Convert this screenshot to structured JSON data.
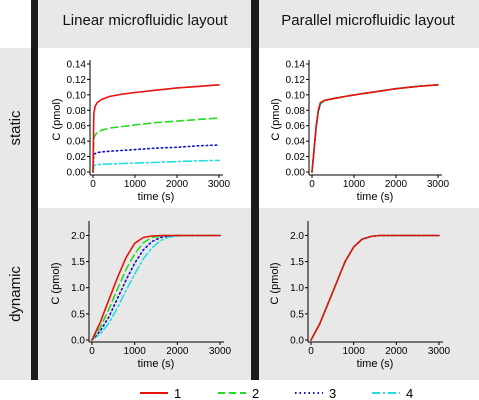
{
  "figure": {
    "columns": [
      "Linear microfluidic layout",
      "Parallel microfluidic layout"
    ],
    "rows": [
      "static",
      "dynamic"
    ],
    "colors": {
      "separator": "#1a1a1a",
      "header_bg": "#e8e8e8",
      "row_bg": "#e8e8e8",
      "plot_bg": "#ffffff"
    }
  },
  "legend": {
    "items": [
      {
        "label": "1",
        "color": "#e8120c",
        "dash": "solid"
      },
      {
        "label": "2",
        "color": "#22dd22",
        "dash": "dash"
      },
      {
        "label": "3",
        "color": "#1010cc",
        "dash": "dot"
      },
      {
        "label": "4",
        "color": "#22e0e0",
        "dash": "dashdot"
      }
    ]
  },
  "chart_data": [
    {
      "id": "linear-static",
      "type": "line",
      "title": "",
      "xlabel": "time (s)",
      "ylabel": "C (pmol)",
      "xlim": [
        0,
        3000
      ],
      "ylim": [
        0,
        0.14
      ],
      "xticks": [
        0,
        1000,
        2000,
        3000
      ],
      "yticks": [
        0.0,
        0.02,
        0.04,
        0.06,
        0.08,
        0.1,
        0.12,
        0.14
      ],
      "xtick_labels": [
        "0",
        "1000",
        "2000",
        "3000"
      ],
      "ytick_labels": [
        "0.00",
        "0.02",
        "0.04",
        "0.06",
        "0.08",
        "0.10",
        "0.12",
        "0.14"
      ],
      "grid": false,
      "series": [
        {
          "name": "1",
          "x": [
            0,
            20,
            50,
            100,
            200,
            400,
            700,
            1000,
            1500,
            2000,
            2500,
            3000
          ],
          "y": [
            0,
            0.075,
            0.085,
            0.09,
            0.094,
            0.098,
            0.101,
            0.103,
            0.106,
            0.109,
            0.111,
            0.113
          ]
        },
        {
          "name": "2",
          "x": [
            0,
            20,
            50,
            100,
            200,
            400,
            700,
            1000,
            1500,
            2000,
            2500,
            3000
          ],
          "y": [
            0,
            0.043,
            0.048,
            0.051,
            0.054,
            0.057,
            0.059,
            0.061,
            0.064,
            0.066,
            0.068,
            0.07
          ]
        },
        {
          "name": "3",
          "x": [
            0,
            20,
            50,
            100,
            200,
            400,
            700,
            1000,
            1500,
            2000,
            2500,
            3000
          ],
          "y": [
            0,
            0.022,
            0.024,
            0.025,
            0.026,
            0.027,
            0.028,
            0.029,
            0.031,
            0.032,
            0.034,
            0.035
          ]
        },
        {
          "name": "4",
          "x": [
            0,
            20,
            50,
            100,
            200,
            400,
            700,
            1000,
            1500,
            2000,
            2500,
            3000
          ],
          "y": [
            0,
            0.008,
            0.009,
            0.0095,
            0.01,
            0.0105,
            0.011,
            0.0115,
            0.0125,
            0.0135,
            0.0145,
            0.015
          ]
        }
      ]
    },
    {
      "id": "parallel-static",
      "type": "line",
      "title": "",
      "xlabel": "time (s)",
      "ylabel": "C (pmol)",
      "xlim": [
        0,
        3000
      ],
      "ylim": [
        0,
        0.14
      ],
      "xticks": [
        0,
        1000,
        2000,
        3000
      ],
      "yticks": [
        0.0,
        0.02,
        0.04,
        0.06,
        0.08,
        0.1,
        0.12,
        0.14
      ],
      "xtick_labels": [
        "0",
        "1000",
        "2000",
        "3000"
      ],
      "ytick_labels": [
        "0.00",
        "0.02",
        "0.04",
        "0.06",
        "0.08",
        "0.10",
        "0.12",
        "0.14"
      ],
      "grid": false,
      "series": [
        {
          "name": "1",
          "x": [
            0,
            50,
            100,
            150,
            200,
            300,
            500,
            800,
            1000,
            1500,
            2000,
            2500,
            3000
          ],
          "y": [
            0,
            0.03,
            0.06,
            0.08,
            0.09,
            0.093,
            0.095,
            0.098,
            0.1,
            0.104,
            0.108,
            0.111,
            0.113
          ]
        },
        {
          "name": "2",
          "x": [
            0,
            50,
            100,
            150,
            200,
            300,
            500,
            800,
            1000,
            1500,
            2000,
            2500,
            3000
          ],
          "y": [
            0,
            0.029,
            0.059,
            0.079,
            0.089,
            0.093,
            0.095,
            0.098,
            0.1,
            0.104,
            0.108,
            0.111,
            0.113
          ]
        },
        {
          "name": "3",
          "x": [
            0,
            50,
            100,
            150,
            200,
            300,
            500,
            800,
            1000,
            1500,
            2000,
            2500,
            3000
          ],
          "y": [
            0,
            0.028,
            0.058,
            0.078,
            0.089,
            0.093,
            0.095,
            0.098,
            0.1,
            0.104,
            0.108,
            0.111,
            0.113
          ]
        },
        {
          "name": "4",
          "x": [
            0,
            50,
            100,
            150,
            200,
            300,
            500,
            800,
            1000,
            1500,
            2000,
            2500,
            3000
          ],
          "y": [
            0,
            0.027,
            0.057,
            0.077,
            0.088,
            0.092,
            0.095,
            0.098,
            0.1,
            0.104,
            0.108,
            0.111,
            0.113
          ]
        }
      ]
    },
    {
      "id": "linear-dynamic",
      "type": "line",
      "title": "",
      "xlabel": "time (s)",
      "ylabel": "C (pmol)",
      "xlim": [
        0,
        3000
      ],
      "ylim": [
        0,
        2.2
      ],
      "xticks": [
        0,
        1000,
        2000,
        3000
      ],
      "yticks": [
        0.0,
        0.5,
        1.0,
        1.5,
        2.0
      ],
      "xtick_labels": [
        "0",
        "1000",
        "2000",
        "3000"
      ],
      "ytick_labels": [
        "0.0",
        "0.5",
        "1.0",
        "1.5",
        "2.0"
      ],
      "grid": false,
      "series": [
        {
          "name": "1",
          "x": [
            0,
            200,
            400,
            600,
            800,
            1000,
            1200,
            1400,
            1600,
            2000,
            2500,
            3000
          ],
          "y": [
            0,
            0.35,
            0.78,
            1.2,
            1.58,
            1.85,
            1.96,
            1.99,
            2.0,
            2.0,
            2.0,
            2.0
          ]
        },
        {
          "name": "2",
          "x": [
            0,
            200,
            400,
            600,
            800,
            1000,
            1200,
            1400,
            1600,
            1800,
            2000,
            2500,
            3000
          ],
          "y": [
            0,
            0.25,
            0.6,
            0.98,
            1.35,
            1.65,
            1.86,
            1.96,
            1.99,
            2.0,
            2.0,
            2.0,
            2.0
          ]
        },
        {
          "name": "3",
          "x": [
            0,
            200,
            400,
            600,
            800,
            1000,
            1200,
            1400,
            1600,
            1800,
            2000,
            2500,
            3000
          ],
          "y": [
            0,
            0.18,
            0.45,
            0.8,
            1.15,
            1.47,
            1.72,
            1.88,
            1.96,
            1.99,
            2.0,
            2.0,
            2.0
          ]
        },
        {
          "name": "4",
          "x": [
            0,
            200,
            400,
            600,
            800,
            1000,
            1200,
            1400,
            1600,
            1800,
            2000,
            2200,
            2500,
            3000
          ],
          "y": [
            0,
            0.12,
            0.33,
            0.62,
            0.95,
            1.26,
            1.55,
            1.76,
            1.9,
            1.97,
            1.99,
            2.0,
            2.0,
            2.0
          ]
        }
      ]
    },
    {
      "id": "parallel-dynamic",
      "type": "line",
      "title": "",
      "xlabel": "time (s)",
      "ylabel": "C (pmol)",
      "xlim": [
        0,
        3000
      ],
      "ylim": [
        0,
        2.2
      ],
      "xticks": [
        0,
        1000,
        2000,
        3000
      ],
      "yticks": [
        0.0,
        0.5,
        1.0,
        1.5,
        2.0
      ],
      "xtick_labels": [
        "0",
        "1000",
        "2000",
        "3000"
      ],
      "ytick_labels": [
        "0.0",
        "0.5",
        "1.0",
        "1.5",
        "2.0"
      ],
      "grid": false,
      "series": [
        {
          "name": "1",
          "x": [
            0,
            200,
            400,
            600,
            800,
            1000,
            1200,
            1400,
            1600,
            2000,
            2500,
            3000
          ],
          "y": [
            0,
            0.3,
            0.7,
            1.1,
            1.5,
            1.78,
            1.93,
            1.98,
            2.0,
            2.0,
            2.0,
            2.0
          ]
        },
        {
          "name": "2",
          "x": [
            0,
            200,
            400,
            600,
            800,
            1000,
            1200,
            1400,
            1600,
            2000,
            2500,
            3000
          ],
          "y": [
            0,
            0.3,
            0.7,
            1.1,
            1.5,
            1.78,
            1.93,
            1.98,
            2.0,
            2.0,
            2.0,
            2.0
          ]
        },
        {
          "name": "3",
          "x": [
            0,
            200,
            400,
            600,
            800,
            1000,
            1200,
            1400,
            1600,
            2000,
            2500,
            3000
          ],
          "y": [
            0,
            0.3,
            0.7,
            1.1,
            1.5,
            1.78,
            1.93,
            1.98,
            2.0,
            2.0,
            2.0,
            2.0
          ]
        },
        {
          "name": "4",
          "x": [
            0,
            200,
            400,
            600,
            800,
            1000,
            1200,
            1400,
            1600,
            2000,
            2500,
            3000
          ],
          "y": [
            0,
            0.3,
            0.7,
            1.1,
            1.5,
            1.78,
            1.93,
            1.98,
            2.0,
            2.0,
            2.0,
            2.0
          ]
        }
      ]
    }
  ]
}
